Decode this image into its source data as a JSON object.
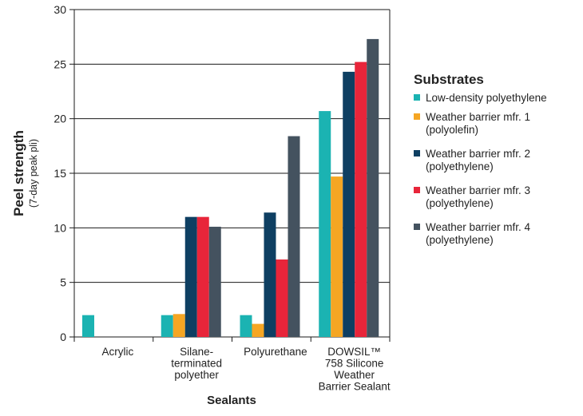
{
  "chart_data": {
    "type": "bar",
    "title": "",
    "ylabel": "Peel strength",
    "ylabel_sub": "(7-day peak pli)",
    "xlabel": "Sealants",
    "ylim": [
      0,
      30
    ],
    "yticks": [
      0,
      5,
      10,
      15,
      20,
      25,
      30
    ],
    "grid": true,
    "legend_title": "Substrates",
    "legend_position": "right",
    "categories": [
      [
        "Acrylic"
      ],
      [
        "Silane-",
        "terminated",
        "polyether"
      ],
      [
        "Polyurethane"
      ],
      [
        "DOWSIL™",
        "758 Silicone",
        "Weather",
        "Barrier Sealant"
      ]
    ],
    "series": [
      {
        "name": [
          "Low-density polyethylene"
        ],
        "color": "#1bb3b2",
        "values": [
          2.0,
          2.0,
          2.0,
          20.7
        ]
      },
      {
        "name": [
          "Weather barrier mfr. 1",
          "(polyolefin)"
        ],
        "color": "#f5a623",
        "values": [
          0,
          2.1,
          1.2,
          14.7
        ]
      },
      {
        "name": [
          "Weather barrier mfr. 2",
          "(polyethylene)"
        ],
        "color": "#0e3f62",
        "values": [
          0,
          11.0,
          11.4,
          24.3
        ]
      },
      {
        "name": [
          "Weather barrier mfr. 3",
          "(polyethylene)"
        ],
        "color": "#e8253a",
        "values": [
          0,
          11.0,
          7.1,
          25.2
        ]
      },
      {
        "name": [
          "Weather barrier mfr. 4",
          "(polyethylene)"
        ],
        "color": "#44525f",
        "values": [
          0,
          10.1,
          18.4,
          27.3
        ]
      }
    ]
  }
}
